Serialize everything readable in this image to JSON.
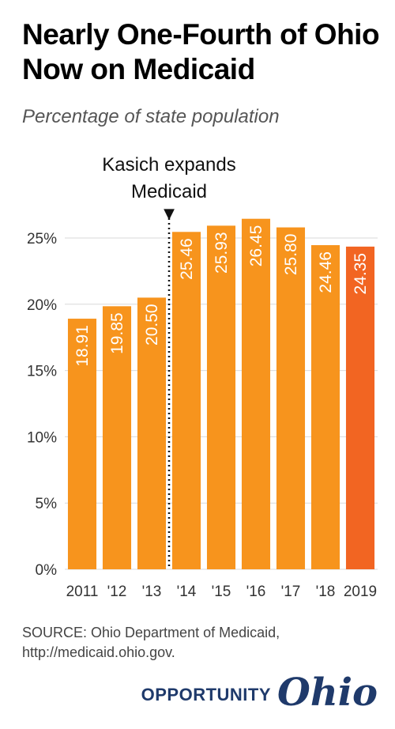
{
  "title": "Nearly One-Fourth of Ohio Now on Medicaid",
  "subtitle": "Percentage of state population",
  "annotation": {
    "line1": "Kasich expands",
    "line2": "Medicaid",
    "marker": "▼"
  },
  "source": "SOURCE: Ohio Department of Medicaid, http://medicaid.ohio.gov.",
  "brand": {
    "word": "OPPORTUNITY",
    "script": "Ohio"
  },
  "colors": {
    "bar": "#f7941d",
    "highlight": "#f26522",
    "grid": "#d9d9d9",
    "label": "#ffffff"
  },
  "chart_data": {
    "type": "bar",
    "categories": [
      "2011",
      "'12",
      "'13",
      "'14",
      "'15",
      "'16",
      "'17",
      "'18",
      "2019"
    ],
    "values": [
      18.91,
      19.85,
      20.5,
      25.46,
      25.93,
      26.45,
      25.8,
      24.46,
      24.35
    ],
    "value_labels": [
      "18.91",
      "19.85",
      "20.50",
      "25.46",
      "25.93",
      "26.45",
      "25.80",
      "24.46",
      "24.35"
    ],
    "yticks": [
      "0%",
      "5%",
      "10%",
      "15%",
      "20%",
      "25%"
    ],
    "ylim": [
      0,
      25
    ],
    "highlight_index": 8,
    "annotation_after_index": 2,
    "grid": true
  }
}
